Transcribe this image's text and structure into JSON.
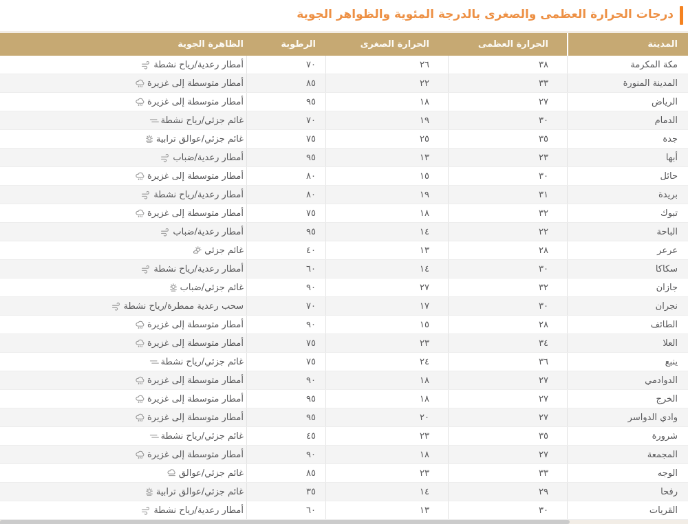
{
  "title": "درجات الحرارة العظمى والصغرى بالدرجة المئوية والظواهر الجوية",
  "colors": {
    "accent_bar": "#F5821F",
    "title_text": "#ED9044",
    "header_bg": "#C6A973",
    "header_text": "#FDFBF6",
    "row_alt_bg": "#F4F4F4",
    "body_text": "#58585A",
    "scrollbar": "#CBCBCB"
  },
  "table": {
    "headers": {
      "city": "المدينة",
      "max": "الحرارة العظمى",
      "min": "الحرارة الصغرى",
      "humidity": "الرطوبة",
      "phenomenon": "الظاهرة الجوية"
    },
    "rows": [
      {
        "city": "مكة المكرمة",
        "max": "٣٨",
        "min": "٢٦",
        "humidity": "٧٠",
        "phenomenon": "أمطار رعدية/رياح نشطة",
        "icon": "storm-wind-icon"
      },
      {
        "city": "المدينة المنورة",
        "max": "٣٣",
        "min": "٢٢",
        "humidity": "٨٥",
        "phenomenon": "أمطار متوسطة إلى غزيرة",
        "icon": "rain-cloud-icon"
      },
      {
        "city": "الرياض",
        "max": "٢٧",
        "min": "١٨",
        "humidity": "٩٥",
        "phenomenon": "أمطار متوسطة إلى غزيرة",
        "icon": "rain-cloud-icon"
      },
      {
        "city": "الدمام",
        "max": "٣٠",
        "min": "١٩",
        "humidity": "٧٠",
        "phenomenon": "غائم جزئي/رياح نشطة",
        "icon": "wind-lines-icon"
      },
      {
        "city": "جدة",
        "max": "٣٥",
        "min": "٢٥",
        "humidity": "٧٥",
        "phenomenon": "غائم جزئي/عوالق ترابية",
        "icon": "sun-dust-icon"
      },
      {
        "city": "أبها",
        "max": "٢٣",
        "min": "١٣",
        "humidity": "٩٥",
        "phenomenon": "أمطار رعدية/ضباب",
        "icon": "storm-wind-icon"
      },
      {
        "city": "حائل",
        "max": "٣٠",
        "min": "١٥",
        "humidity": "٨٠",
        "phenomenon": "أمطار متوسطة إلى غزيرة",
        "icon": "rain-cloud-icon"
      },
      {
        "city": "بريدة",
        "max": "٣١",
        "min": "١٩",
        "humidity": "٨٠",
        "phenomenon": "أمطار رعدية/رياح نشطة",
        "icon": "storm-wind-icon"
      },
      {
        "city": "تبوك",
        "max": "٣٢",
        "min": "١٨",
        "humidity": "٧٥",
        "phenomenon": "أمطار متوسطة إلى غزيرة",
        "icon": "rain-cloud-icon"
      },
      {
        "city": "الباحة",
        "max": "٢٢",
        "min": "١٤",
        "humidity": "٩٥",
        "phenomenon": "أمطار رعدية/ضباب",
        "icon": "storm-wind-icon"
      },
      {
        "city": "عرعر",
        "max": "٢٨",
        "min": "١٣",
        "humidity": "٤٠",
        "phenomenon": "غائم جزئي",
        "icon": "sun-cloud-icon"
      },
      {
        "city": "سكاكا",
        "max": "٣٠",
        "min": "١٤",
        "humidity": "٦٠",
        "phenomenon": "أمطار رعدية/رياح نشطة",
        "icon": "storm-wind-icon"
      },
      {
        "city": "جازان",
        "max": "٣٢",
        "min": "٢٧",
        "humidity": "٩٠",
        "phenomenon": "غائم جزئي/ضباب",
        "icon": "sun-dust-icon"
      },
      {
        "city": "نجران",
        "max": "٣٠",
        "min": "١٧",
        "humidity": "٧٠",
        "phenomenon": "سحب رعدية ممطرة/رياح نشطة",
        "icon": "storm-wind-icon"
      },
      {
        "city": "الطائف",
        "max": "٢٨",
        "min": "١٥",
        "humidity": "٩٠",
        "phenomenon": "أمطار متوسطة إلى غزيرة",
        "icon": "rain-cloud-icon"
      },
      {
        "city": "العلا",
        "max": "٣٤",
        "min": "٢٣",
        "humidity": "٧٥",
        "phenomenon": "أمطار متوسطة إلى غزيرة",
        "icon": "rain-cloud-icon"
      },
      {
        "city": "ينبع",
        "max": "٣٦",
        "min": "٢٤",
        "humidity": "٧٥",
        "phenomenon": "غائم جزئي/رياح نشطة",
        "icon": "wind-lines-icon"
      },
      {
        "city": "الدوادمي",
        "max": "٢٧",
        "min": "١٨",
        "humidity": "٩٠",
        "phenomenon": "أمطار متوسطة إلى غزيرة",
        "icon": "rain-cloud-icon"
      },
      {
        "city": "الخرج",
        "max": "٢٧",
        "min": "١٨",
        "humidity": "٩٥",
        "phenomenon": "أمطار متوسطة إلى غزيرة",
        "icon": "rain-cloud-icon"
      },
      {
        "city": "وادي الدواسر",
        "max": "٢٧",
        "min": "٢٠",
        "humidity": "٩٥",
        "phenomenon": "أمطار متوسطة إلى غزيرة",
        "icon": "rain-cloud-icon"
      },
      {
        "city": "شرورة",
        "max": "٣٥",
        "min": "٢٣",
        "humidity": "٤٥",
        "phenomenon": "غائم جزئي/رياح نشطة",
        "icon": "wind-lines-icon"
      },
      {
        "city": "المجمعة",
        "max": "٢٧",
        "min": "١٨",
        "humidity": "٩٠",
        "phenomenon": "أمطار متوسطة إلى غزيرة",
        "icon": "rain-cloud-icon"
      },
      {
        "city": "الوجه",
        "max": "٣٣",
        "min": "٢٣",
        "humidity": "٨٥",
        "phenomenon": "غائم جزئي/عوالق",
        "icon": "cloud-haze-icon"
      },
      {
        "city": "رفحا",
        "max": "٢٩",
        "min": "١٤",
        "humidity": "٣٥",
        "phenomenon": "غائم جزئي/عوالق ترابية",
        "icon": "sun-dust-icon"
      },
      {
        "city": "القريات",
        "max": "٣٠",
        "min": "١٣",
        "humidity": "٦٠",
        "phenomenon": "أمطار رعدية/رياح نشطة",
        "icon": "storm-wind-icon"
      }
    ]
  }
}
